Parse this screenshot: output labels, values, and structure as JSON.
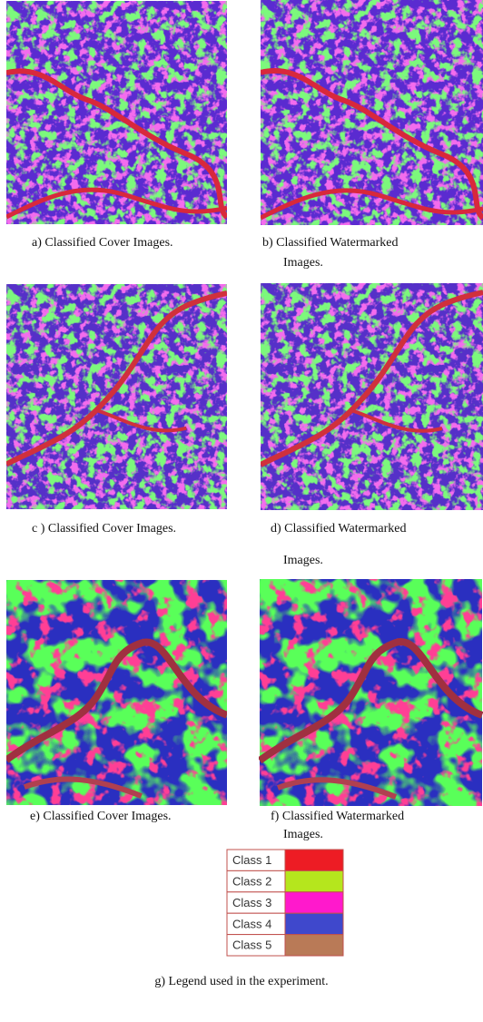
{
  "panels": [
    {
      "caption": [
        "a)  Classified Cover Images."
      ]
    },
    {
      "caption": [
        "b) Classified Watermarked",
        "Images."
      ]
    },
    {
      "caption": [
        "c ) Classified Cover Images."
      ]
    },
    {
      "caption": [
        "d) Classified Watermarked",
        "Images."
      ]
    },
    {
      "caption": [
        "e) Classified Cover Images."
      ]
    },
    {
      "caption": [
        "f) Classified Watermarked",
        "Images."
      ]
    }
  ],
  "legend": {
    "rows": [
      {
        "label": "Class 1",
        "color": "#ed1c24"
      },
      {
        "label": "Class 2",
        "color": "#b5e61d"
      },
      {
        "label": "Class 3",
        "color": "#ff19cc"
      },
      {
        "label": "Class 4",
        "color": "#3f48cc"
      },
      {
        "label": "Class 5",
        "color": "#b97a57"
      }
    ],
    "caption": "g) Legend used in the experiment."
  }
}
